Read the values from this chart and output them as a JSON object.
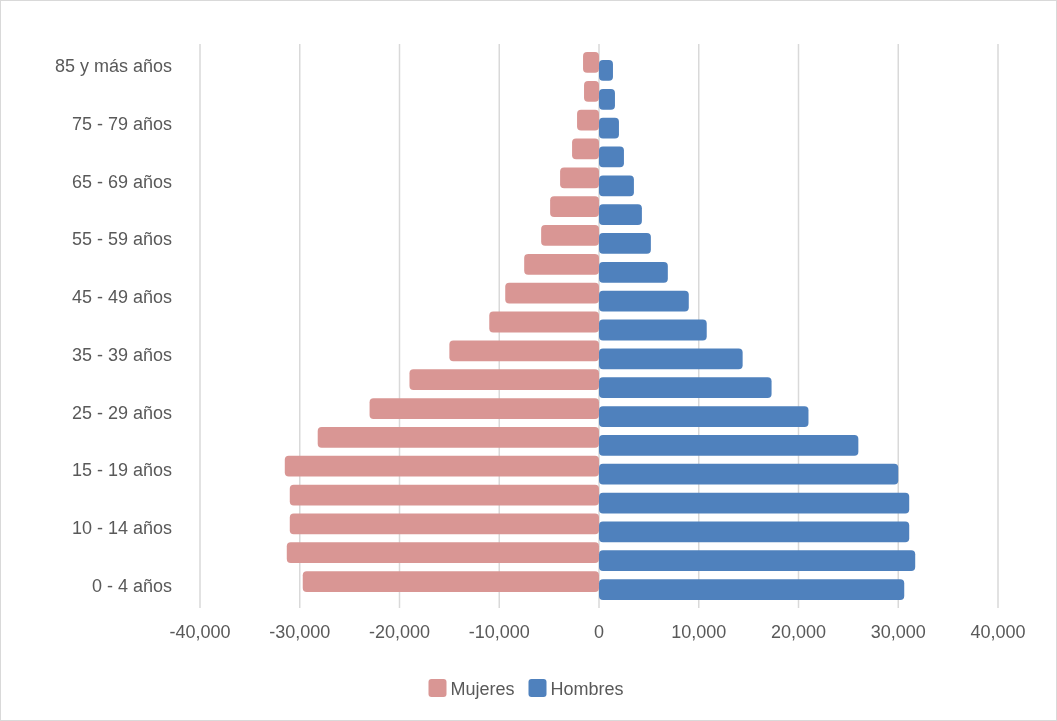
{
  "chart_data": {
    "type": "bar",
    "orientation": "horizontal",
    "categories": [
      "85 y más años",
      null,
      "75 - 79 años",
      null,
      "65 - 69 años",
      null,
      "55 - 59 años",
      null,
      "45 - 49 años",
      null,
      "35 - 39 años",
      null,
      "25 - 29 años",
      null,
      "15 - 19 años",
      null,
      "10 - 14 años",
      null,
      "0 - 4 años"
    ],
    "series": [
      {
        "name": "Mujeres",
        "color": "#d99694",
        "values": [
          -1600,
          -1500,
          -2200,
          -2700,
          -3900,
          -4900,
          -5800,
          -7500,
          -9400,
          -11000,
          -15000,
          -19000,
          -23000,
          -28200,
          -31500,
          -31000,
          -31000,
          -31300,
          -29700
        ]
      },
      {
        "name": "Hombres",
        "color": "#4f81bd",
        "values": [
          1400,
          1600,
          2000,
          2500,
          3500,
          4300,
          5200,
          6900,
          9000,
          10800,
          14400,
          17300,
          21000,
          26000,
          30000,
          31100,
          31100,
          31700,
          30600
        ]
      }
    ],
    "xlim": [
      -40000,
      40000
    ],
    "xticks": [
      {
        "value": -40000,
        "label": "-40,000"
      },
      {
        "value": -30000,
        "label": "-30,000"
      },
      {
        "value": -20000,
        "label": "-20,000"
      },
      {
        "value": -10000,
        "label": "-10,000"
      },
      0,
      {
        "value": 10000,
        "label": "10,000"
      },
      {
        "value": 20000,
        "label": "20,000"
      },
      {
        "value": 30000,
        "label": "30,000"
      },
      {
        "value": 40000,
        "label": "40,000"
      }
    ],
    "grid": "x",
    "legend": "bottom"
  }
}
